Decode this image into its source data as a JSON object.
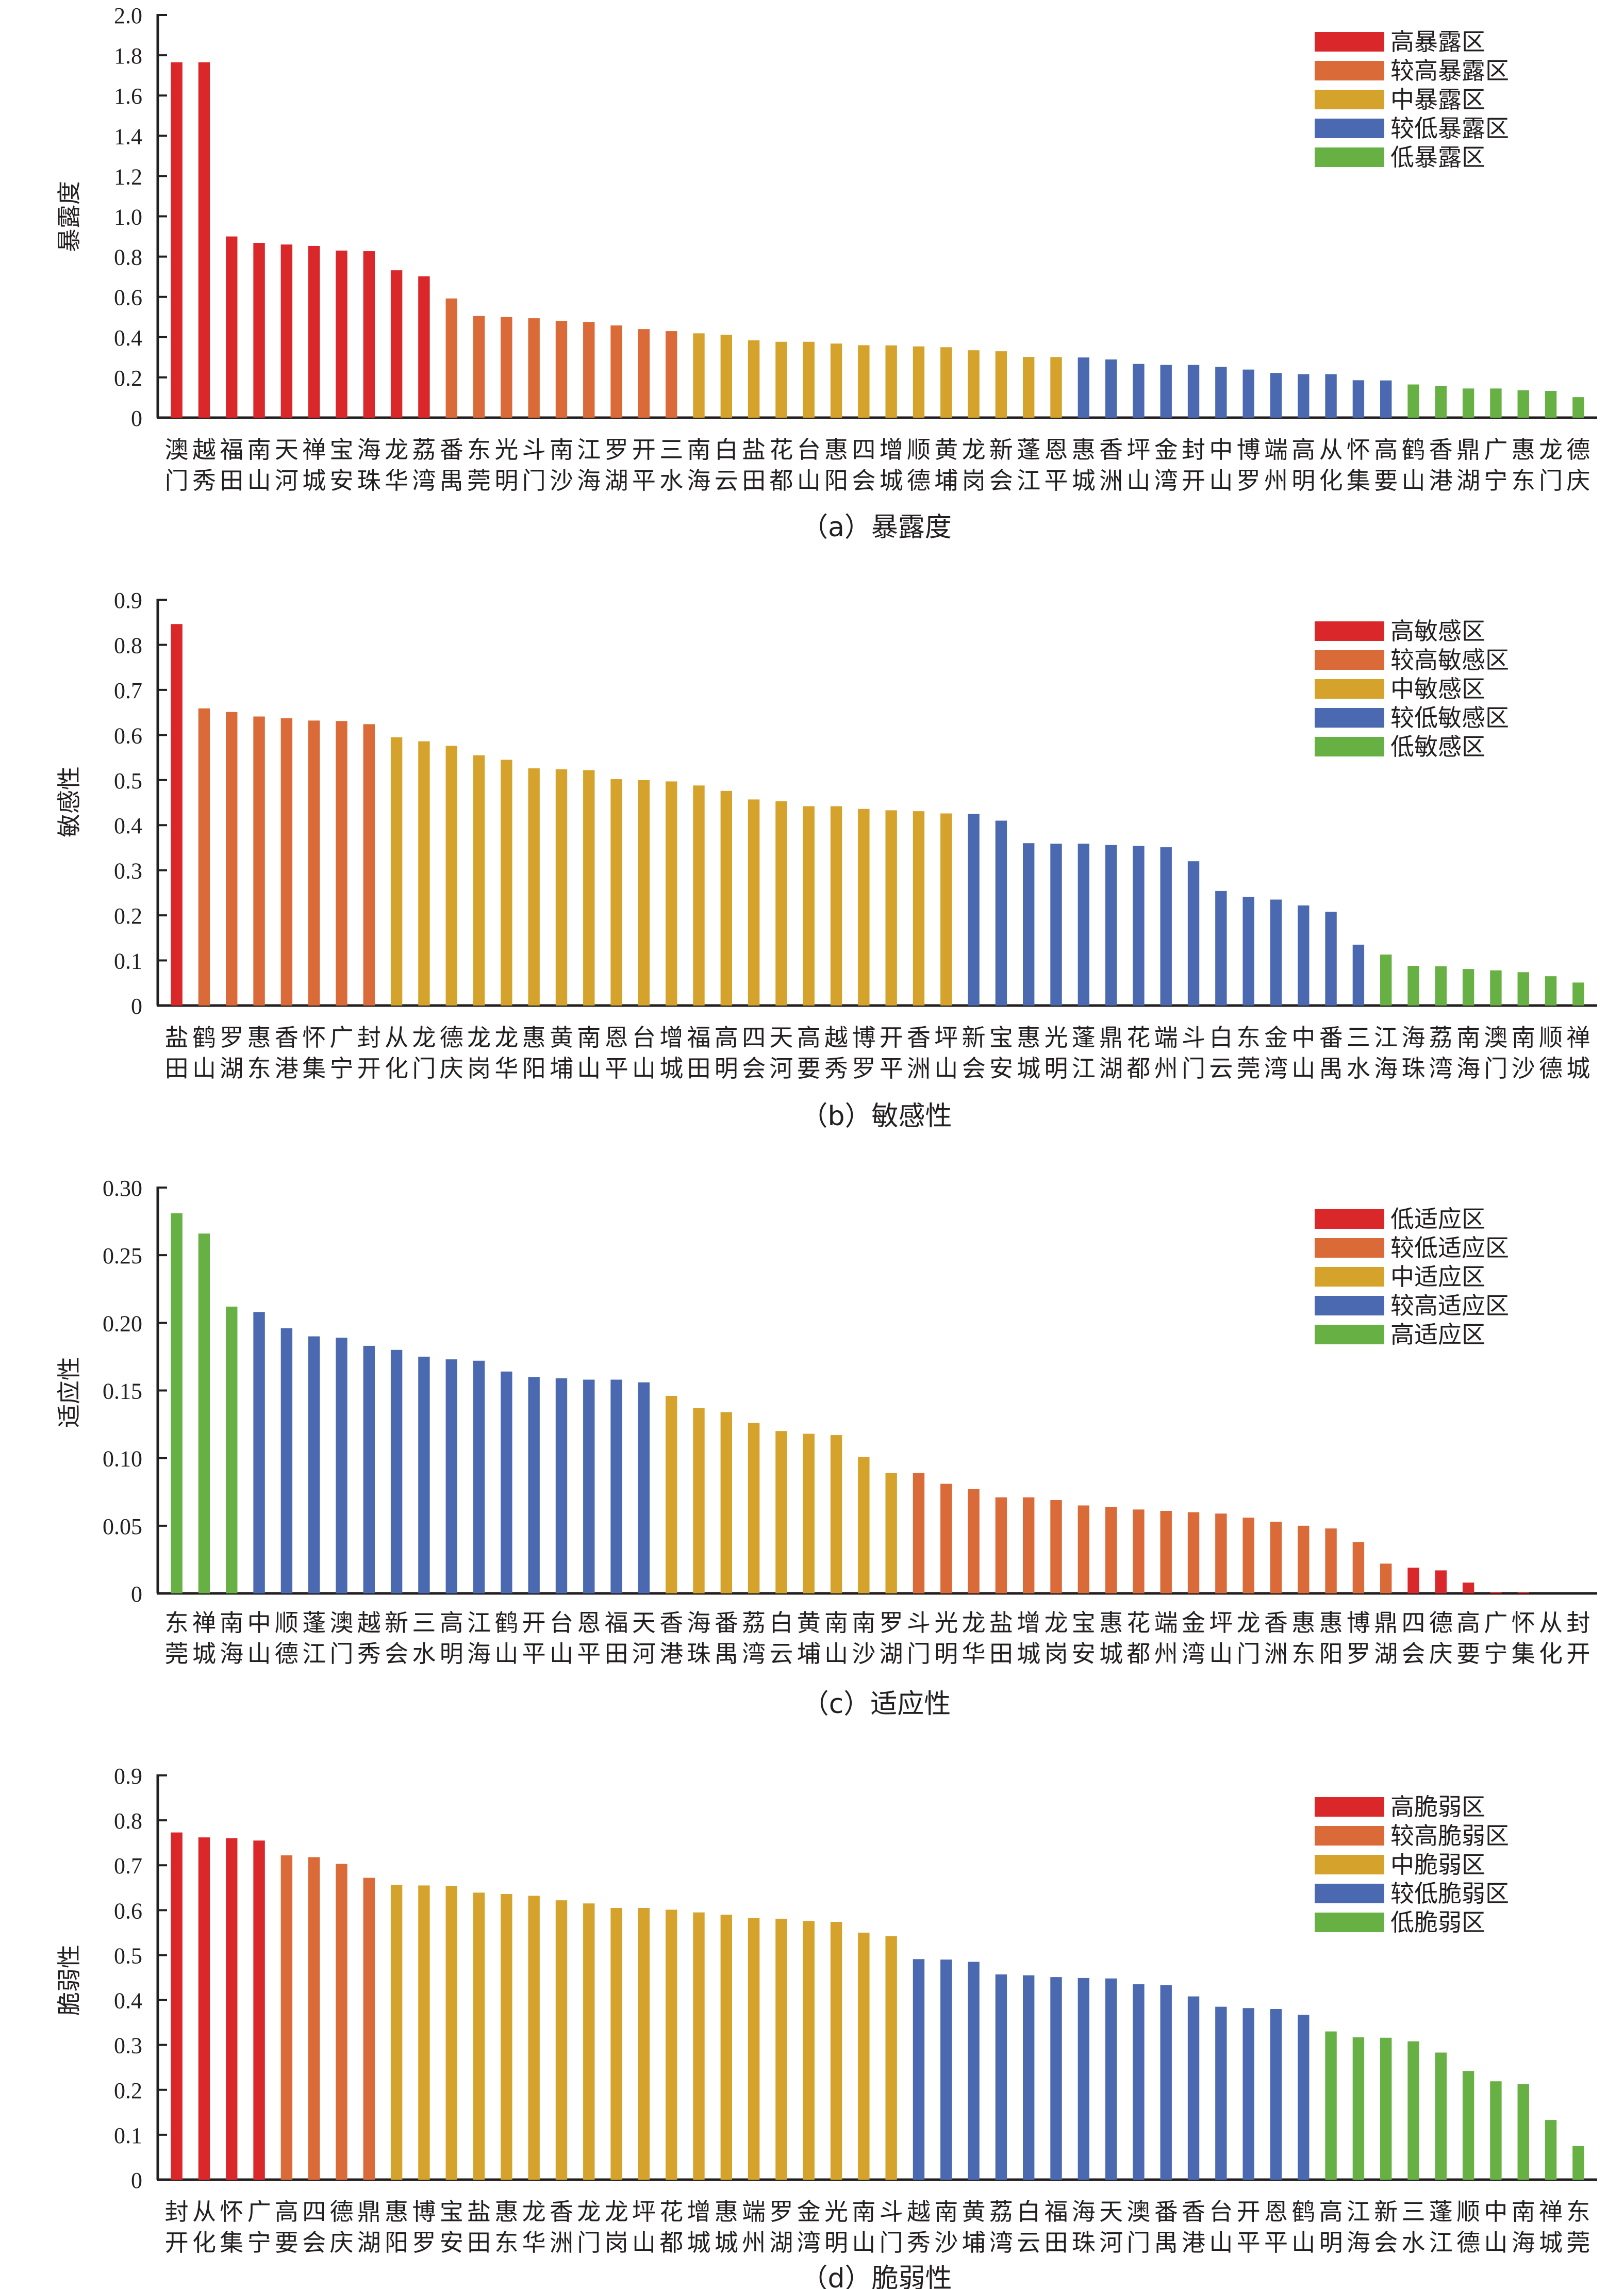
{
  "figure": {
    "panels": [
      "a",
      "b",
      "c",
      "d"
    ]
  },
  "colors": {
    "red": "#D9272A",
    "orange": "#DA6A37",
    "yellow": "#D5A32B",
    "blue": "#4A69B0",
    "green": "#67B044"
  },
  "chart_data": [
    {
      "type": "bar",
      "id": "a",
      "title": "(a) 暴露度",
      "caption": "（a）暴露度",
      "xlabel": "",
      "ylabel": "暴露度",
      "ylim": [
        0,
        2.0
      ],
      "yticks": [
        "0",
        "0.2",
        "0.4",
        "0.6",
        "0.8",
        "1.0",
        "1.2",
        "1.4",
        "1.6",
        "1.8",
        "2.0"
      ],
      "ytick_values": [
        0,
        0.2,
        0.4,
        0.6,
        0.8,
        1.0,
        1.2,
        1.4,
        1.6,
        1.8,
        2.0
      ],
      "grid": false,
      "legend_position": "top-right",
      "legend": [
        {
          "label": "高暴露区",
          "color": "red"
        },
        {
          "label": "较高暴露区",
          "color": "orange"
        },
        {
          "label": "中暴露区",
          "color": "yellow"
        },
        {
          "label": "较低暴露区",
          "color": "blue"
        },
        {
          "label": "低暴露区",
          "color": "green"
        }
      ],
      "categories": [
        "澳门",
        "越秀",
        "福田",
        "南山",
        "天河",
        "禅城",
        "宝安",
        "海珠",
        "龙华",
        "荔湾",
        "番禺",
        "东莞",
        "光明",
        "斗门",
        "南沙",
        "江海",
        "罗湖",
        "开平",
        "三水",
        "南海",
        "白云",
        "盐田",
        "花都",
        "台山",
        "惠阳",
        "四会",
        "增城",
        "顺德",
        "黄埔",
        "龙岗",
        "新会",
        "蓬江",
        "恩平",
        "惠城",
        "香洲",
        "坪山",
        "金湾",
        "封开",
        "中山",
        "博罗",
        "端州",
        "高明",
        "从化",
        "怀集",
        "高要",
        "鹤山",
        "香港",
        "鼎湖",
        "广宁",
        "惠东",
        "龙门",
        "德庆"
      ],
      "values": [
        1.765,
        1.765,
        0.9,
        0.868,
        0.86,
        0.853,
        0.83,
        0.827,
        0.732,
        0.702,
        0.592,
        0.505,
        0.5,
        0.494,
        0.48,
        0.475,
        0.458,
        0.44,
        0.43,
        0.419,
        0.412,
        0.384,
        0.377,
        0.377,
        0.368,
        0.36,
        0.359,
        0.354,
        0.35,
        0.335,
        0.33,
        0.302,
        0.301,
        0.299,
        0.289,
        0.267,
        0.262,
        0.262,
        0.252,
        0.239,
        0.222,
        0.216,
        0.216,
        0.186,
        0.185,
        0.165,
        0.157,
        0.145,
        0.145,
        0.136,
        0.133,
        0.102
      ],
      "classes": [
        "red",
        "red",
        "red",
        "red",
        "red",
        "red",
        "red",
        "red",
        "red",
        "red",
        "orange",
        "orange",
        "orange",
        "orange",
        "orange",
        "orange",
        "orange",
        "orange",
        "orange",
        "yellow",
        "yellow",
        "yellow",
        "yellow",
        "yellow",
        "yellow",
        "yellow",
        "yellow",
        "yellow",
        "yellow",
        "yellow",
        "yellow",
        "yellow",
        "yellow",
        "blue",
        "blue",
        "blue",
        "blue",
        "blue",
        "blue",
        "blue",
        "blue",
        "blue",
        "blue",
        "blue",
        "blue",
        "green",
        "green",
        "green",
        "green",
        "green",
        "green",
        "green"
      ]
    },
    {
      "type": "bar",
      "id": "b",
      "title": "(b) 敏感性",
      "caption": "（b）敏感性",
      "xlabel": "",
      "ylabel": "敏感性",
      "ylim": [
        0,
        0.9
      ],
      "yticks": [
        "0",
        "0.1",
        "0.2",
        "0.3",
        "0.4",
        "0.5",
        "0.6",
        "0.7",
        "0.8",
        "0.9"
      ],
      "ytick_values": [
        0,
        0.1,
        0.2,
        0.3,
        0.4,
        0.5,
        0.6,
        0.7,
        0.8,
        0.9
      ],
      "grid": false,
      "legend_position": "top-right",
      "legend": [
        {
          "label": "高敏感区",
          "color": "red"
        },
        {
          "label": "较高敏感区",
          "color": "orange"
        },
        {
          "label": "中敏感区",
          "color": "yellow"
        },
        {
          "label": "较低敏感区",
          "color": "blue"
        },
        {
          "label": "低敏感区",
          "color": "green"
        }
      ],
      "categories": [
        "盐田",
        "鹤山",
        "罗湖",
        "惠东",
        "香港",
        "怀集",
        "广宁",
        "封开",
        "从化",
        "龙门",
        "德庆",
        "龙岗",
        "龙华",
        "惠阳",
        "黄埔",
        "南山",
        "恩平",
        "台山",
        "增城",
        "福田",
        "高明",
        "四会",
        "天河",
        "高要",
        "越秀",
        "博罗",
        "开平",
        "香洲",
        "坪山",
        "新会",
        "宝安",
        "惠城",
        "光明",
        "蓬江",
        "鼎湖",
        "花都",
        "端州",
        "斗门",
        "白云",
        "东莞",
        "金湾",
        "中山",
        "番禺",
        "三水",
        "江海",
        "海珠",
        "荔湾",
        "南海",
        "澳门",
        "南沙",
        "顺德",
        "禅城"
      ],
      "values": [
        0.846,
        0.659,
        0.651,
        0.641,
        0.637,
        0.632,
        0.631,
        0.624,
        0.595,
        0.586,
        0.576,
        0.555,
        0.545,
        0.526,
        0.524,
        0.522,
        0.502,
        0.5,
        0.497,
        0.488,
        0.476,
        0.457,
        0.453,
        0.442,
        0.442,
        0.436,
        0.433,
        0.431,
        0.426,
        0.425,
        0.41,
        0.36,
        0.359,
        0.359,
        0.356,
        0.354,
        0.351,
        0.32,
        0.254,
        0.241,
        0.235,
        0.222,
        0.208,
        0.135,
        0.113,
        0.088,
        0.087,
        0.081,
        0.078,
        0.074,
        0.065,
        0.051
      ],
      "classes": [
        "red",
        "orange",
        "orange",
        "orange",
        "orange",
        "orange",
        "orange",
        "orange",
        "yellow",
        "yellow",
        "yellow",
        "yellow",
        "yellow",
        "yellow",
        "yellow",
        "yellow",
        "yellow",
        "yellow",
        "yellow",
        "yellow",
        "yellow",
        "yellow",
        "yellow",
        "yellow",
        "yellow",
        "yellow",
        "yellow",
        "yellow",
        "yellow",
        "blue",
        "blue",
        "blue",
        "blue",
        "blue",
        "blue",
        "blue",
        "blue",
        "blue",
        "blue",
        "blue",
        "blue",
        "blue",
        "blue",
        "blue",
        "green",
        "green",
        "green",
        "green",
        "green",
        "green",
        "green",
        "green"
      ]
    },
    {
      "type": "bar",
      "id": "c",
      "title": "(c) 适应性",
      "caption": "（c）适应性",
      "xlabel": "",
      "ylabel": "适应性",
      "ylim": [
        0,
        0.3
      ],
      "yticks": [
        "0",
        "0.05",
        "0.10",
        "0.15",
        "0.20",
        "0.25",
        "0.30"
      ],
      "ytick_values": [
        0,
        0.05,
        0.1,
        0.15,
        0.2,
        0.25,
        0.3
      ],
      "grid": false,
      "legend_position": "top-right",
      "legend": [
        {
          "label": "低适应区",
          "color": "red"
        },
        {
          "label": "较低适应区",
          "color": "orange"
        },
        {
          "label": "中适应区",
          "color": "yellow"
        },
        {
          "label": "较高适应区",
          "color": "blue"
        },
        {
          "label": "高适应区",
          "color": "green"
        }
      ],
      "categories": [
        "东莞",
        "禅城",
        "南海",
        "中山",
        "顺德",
        "蓬江",
        "澳门",
        "越秀",
        "新会",
        "三水",
        "高明",
        "江海",
        "鹤山",
        "开平",
        "台山",
        "恩平",
        "福田",
        "天河",
        "香港",
        "海珠",
        "番禺",
        "荔湾",
        "白云",
        "黄埔",
        "南山",
        "南沙",
        "罗湖",
        "斗门",
        "光明",
        "龙华",
        "盐田",
        "增城",
        "龙岗",
        "宝安",
        "惠城",
        "花都",
        "端州",
        "金湾",
        "坪山",
        "龙门",
        "香洲",
        "惠东",
        "惠阳",
        "博罗",
        "鼎湖",
        "四会",
        "德庆",
        "高要",
        "广宁",
        "怀集",
        "从化",
        "封开"
      ],
      "values": [
        0.281,
        0.266,
        0.212,
        0.208,
        0.196,
        0.19,
        0.189,
        0.183,
        0.18,
        0.175,
        0.173,
        0.172,
        0.164,
        0.16,
        0.159,
        0.158,
        0.158,
        0.156,
        0.146,
        0.137,
        0.134,
        0.126,
        0.12,
        0.118,
        0.117,
        0.101,
        0.089,
        0.089,
        0.081,
        0.077,
        0.071,
        0.071,
        0.069,
        0.065,
        0.064,
        0.062,
        0.061,
        0.06,
        0.059,
        0.056,
        0.053,
        0.05,
        0.048,
        0.038,
        0.022,
        0.019,
        0.017,
        0.008,
        0.001,
        0.001,
        0.0,
        0.0
      ],
      "classes": [
        "green",
        "green",
        "green",
        "blue",
        "blue",
        "blue",
        "blue",
        "blue",
        "blue",
        "blue",
        "blue",
        "blue",
        "blue",
        "blue",
        "blue",
        "blue",
        "blue",
        "blue",
        "yellow",
        "yellow",
        "yellow",
        "yellow",
        "yellow",
        "yellow",
        "yellow",
        "yellow",
        "yellow",
        "orange",
        "orange",
        "orange",
        "orange",
        "orange",
        "orange",
        "orange",
        "orange",
        "orange",
        "orange",
        "orange",
        "orange",
        "orange",
        "orange",
        "orange",
        "orange",
        "orange",
        "orange",
        "red",
        "red",
        "red",
        "red",
        "red",
        "red",
        "red"
      ]
    },
    {
      "type": "bar",
      "id": "d",
      "title": "(d) 脆弱性",
      "caption": "（d）脆弱性",
      "xlabel": "",
      "ylabel": "脆弱性",
      "ylim": [
        0,
        0.9
      ],
      "yticks": [
        "0",
        "0.1",
        "0.2",
        "0.3",
        "0.4",
        "0.5",
        "0.6",
        "0.7",
        "0.8",
        "0.9"
      ],
      "ytick_values": [
        0,
        0.1,
        0.2,
        0.3,
        0.4,
        0.5,
        0.6,
        0.7,
        0.8,
        0.9
      ],
      "grid": false,
      "legend_position": "top-right",
      "legend": [
        {
          "label": "高脆弱区",
          "color": "red"
        },
        {
          "label": "较高脆弱区",
          "color": "orange"
        },
        {
          "label": "中脆弱区",
          "color": "yellow"
        },
        {
          "label": "较低脆弱区",
          "color": "blue"
        },
        {
          "label": "低脆弱区",
          "color": "green"
        }
      ],
      "categories": [
        "封开",
        "从化",
        "怀集",
        "广宁",
        "高要",
        "四会",
        "德庆",
        "鼎湖",
        "惠阳",
        "博罗",
        "宝安",
        "盐田",
        "惠东",
        "龙华",
        "香洲",
        "龙门",
        "龙岗",
        "坪山",
        "花都",
        "增城",
        "惠城",
        "端州",
        "罗湖",
        "金湾",
        "光明",
        "南山",
        "斗门",
        "越秀",
        "南沙",
        "黄埔",
        "荔湾",
        "白云",
        "福田",
        "海珠",
        "天河",
        "澳门",
        "番禺",
        "香港",
        "台山",
        "开平",
        "恩平",
        "鹤山",
        "高明",
        "江海",
        "新会",
        "三水",
        "蓬江",
        "顺德",
        "中山",
        "南海",
        "禅城",
        "东莞"
      ],
      "values": [
        0.773,
        0.762,
        0.76,
        0.755,
        0.722,
        0.718,
        0.703,
        0.672,
        0.656,
        0.655,
        0.654,
        0.639,
        0.636,
        0.632,
        0.622,
        0.615,
        0.605,
        0.605,
        0.601,
        0.595,
        0.59,
        0.582,
        0.581,
        0.576,
        0.574,
        0.55,
        0.542,
        0.491,
        0.49,
        0.485,
        0.457,
        0.455,
        0.451,
        0.449,
        0.448,
        0.435,
        0.433,
        0.408,
        0.385,
        0.382,
        0.38,
        0.367,
        0.33,
        0.317,
        0.316,
        0.308,
        0.283,
        0.242,
        0.219,
        0.213,
        0.133,
        0.075
      ],
      "classes": [
        "red",
        "red",
        "red",
        "red",
        "orange",
        "orange",
        "orange",
        "orange",
        "yellow",
        "yellow",
        "yellow",
        "yellow",
        "yellow",
        "yellow",
        "yellow",
        "yellow",
        "yellow",
        "yellow",
        "yellow",
        "yellow",
        "yellow",
        "yellow",
        "yellow",
        "yellow",
        "yellow",
        "yellow",
        "yellow",
        "blue",
        "blue",
        "blue",
        "blue",
        "blue",
        "blue",
        "blue",
        "blue",
        "blue",
        "blue",
        "blue",
        "blue",
        "blue",
        "blue",
        "blue",
        "green",
        "green",
        "green",
        "green",
        "green",
        "green",
        "green",
        "green",
        "green",
        "green"
      ]
    }
  ]
}
